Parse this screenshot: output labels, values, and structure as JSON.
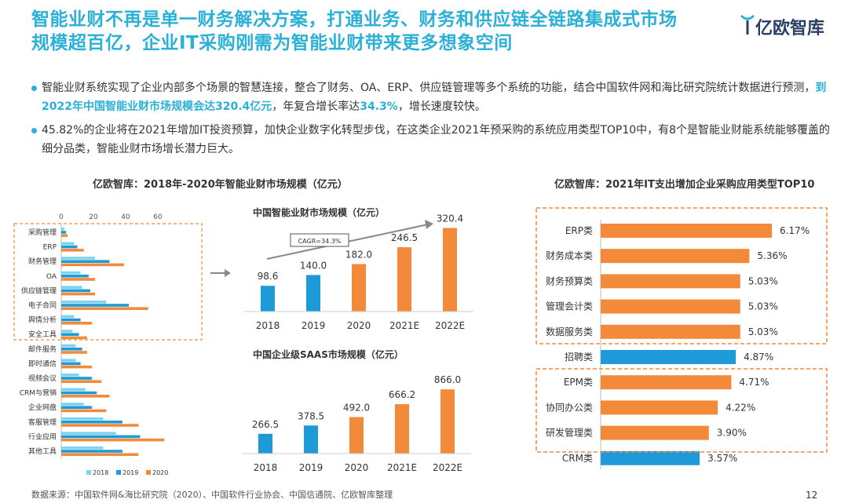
{
  "header": {
    "title_line1": "智能业财不再是单一财务解决方案，打通业务、财务和供应链全链路集成式市场",
    "title_line2": "规模超百亿，企业IT采购刚需为智能业财带来更多想象空间",
    "logo_text": "亿欧智库"
  },
  "bullets": [
    {
      "pre": "智能业财系统实现了企业内部多个场景的智慧连接，整合了财务、OA、ERP、供应链管理等多个系统的功能，结合中国软件网和海比研究院统计数据进行预测，",
      "hl1": "到2022年中国智能业财市场规模会达320.4亿元",
      "mid": "，年复合增长率达",
      "hl2": "34.3%",
      "post": "，增长速度较快。"
    },
    {
      "text": "45.82%的企业将在2021年增加IT投资预算，加快企业数字化转型步伐，在这类企业2021年预采购的系统应用类型TOP10中，有8个是智能业财能系统能够覆盖的细分品类，智能业财市场增长潜力巨大。"
    }
  ],
  "chart_titles": {
    "left": "亿欧智库：2018年-2020年智能业财市场规模（亿元）",
    "right": "亿欧智库：2021年IT支出增加企业采购应用类型TOP10"
  },
  "footer": {
    "source": "数据来源：中国软件网&海比研究院（2020）、中国软件行业协会、中国信通院、亿欧智库整理",
    "page": "12"
  },
  "colors": {
    "accent": "#2bb0d6",
    "c2018": "#7fd3ee",
    "c2019": "#1f9ad8",
    "c2020": "#f28a3a",
    "bar_blue": "#1f9ad8",
    "bar_orange": "#f28a3a",
    "dash": "#f28a3a"
  },
  "chart_data": [
    {
      "type": "bar",
      "orientation": "horizontal",
      "title": "亿欧智库：2018年-2020年智能业财市场规模（亿元）",
      "categories": [
        "采购管理",
        "ERP",
        "财务管理",
        "OA",
        "供应链管理",
        "电子合同",
        "舆情分析",
        "安全工具",
        "邮件服务",
        "即时通信",
        "视频会议",
        "CRM与营销",
        "企业网盘",
        "客服管理",
        "行业应用",
        "其他工具"
      ],
      "xticks": [
        0,
        20,
        40,
        60
      ],
      "xlim": [
        0,
        80
      ],
      "series": [
        {
          "name": "2018",
          "values": [
            2,
            8,
            21,
            12,
            13,
            28,
            8,
            7,
            9,
            9,
            11,
            15,
            14,
            26,
            34,
            26
          ]
        },
        {
          "name": "2019",
          "values": [
            3,
            10,
            30,
            17,
            18,
            42,
            12,
            11,
            13,
            12,
            19,
            22,
            19,
            38,
            49,
            38
          ]
        },
        {
          "name": "2020",
          "values": [
            4,
            14,
            39,
            21,
            21,
            54,
            19,
            16,
            16,
            19,
            25,
            30,
            28,
            48,
            64,
            48
          ]
        }
      ]
    },
    {
      "type": "bar",
      "title": "中国智能业财市场规模（亿元）",
      "categories": [
        "2018",
        "2019",
        "2020",
        "2021E",
        "2022E"
      ],
      "values": [
        98.6,
        140.0,
        182.0,
        246.5,
        320.4
      ],
      "labels": [
        "98.6",
        "140.0",
        "182.0",
        "246.5",
        "320.4"
      ],
      "annotation": "CAGR=34.3%",
      "ylim": [
        0,
        340
      ]
    },
    {
      "type": "bar",
      "title": "中国企业级SAAS市场规模（亿元）",
      "categories": [
        "2018",
        "2019",
        "2020",
        "2021E",
        "2022E"
      ],
      "values": [
        266.5,
        378.5,
        492.0,
        666.2,
        866.0
      ],
      "labels": [
        "266.5",
        "378.5",
        "492.0",
        "666.2",
        "866.0"
      ],
      "ylim": [
        0,
        900
      ]
    },
    {
      "type": "bar",
      "orientation": "horizontal",
      "title": "亿欧智库：2021年IT支出增加企业采购应用类型TOP10",
      "categories": [
        "ERP类",
        "财务成本类",
        "财务预算类",
        "管理会计类",
        "数据服务类",
        "招聘类",
        "EPM类",
        "协同办公类",
        "研发管理类",
        "CRM类"
      ],
      "values": [
        6.17,
        5.36,
        5.03,
        5.03,
        5.03,
        4.87,
        4.71,
        4.22,
        3.9,
        3.57
      ],
      "labels": [
        "6.17%",
        "5.36%",
        "5.03%",
        "5.03%",
        "5.03%",
        "4.87%",
        "4.71%",
        "4.22%",
        "3.90%",
        "3.57%"
      ],
      "highlight": [
        "orange",
        "orange",
        "orange",
        "orange",
        "orange",
        "blue",
        "orange",
        "orange",
        "orange",
        "blue"
      ],
      "xlim": [
        0,
        7
      ]
    }
  ]
}
